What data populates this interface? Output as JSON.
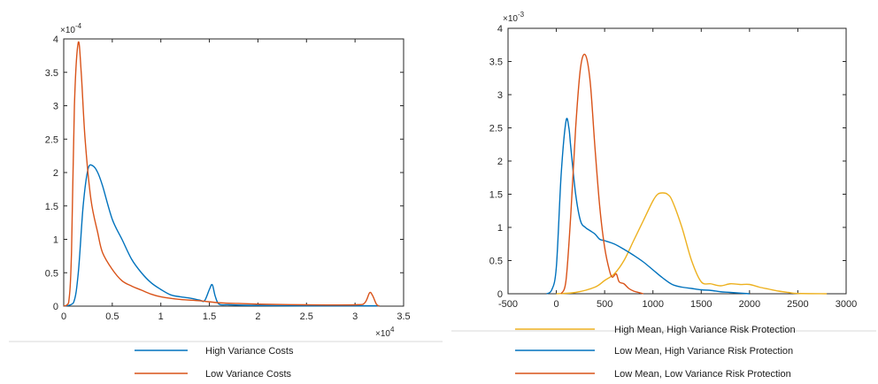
{
  "chart_data": [
    {
      "type": "line",
      "title": "",
      "xlabel": "",
      "ylabel": "",
      "xlim": [
        0,
        35000
      ],
      "ylim": [
        0,
        0.0004
      ],
      "x_ticks": [
        0,
        5000,
        10000,
        15000,
        20000,
        25000,
        30000,
        35000
      ],
      "x_tick_labels": [
        "0",
        "0.5",
        "1",
        "1.5",
        "2",
        "2.5",
        "3",
        "3.5"
      ],
      "y_ticks": [
        0,
        5e-05,
        0.0001,
        0.00015,
        0.0002,
        0.00025,
        0.0003,
        0.00035,
        0.0004
      ],
      "y_tick_labels": [
        "0",
        "0.5",
        "1",
        "1.5",
        "2",
        "2.5",
        "3",
        "3.5",
        "4"
      ],
      "x_multiplier": {
        "base": "×10",
        "exp": "4"
      },
      "y_multiplier": {
        "base": "×10",
        "exp": "-4"
      },
      "grid": false,
      "legend_position": "below",
      "series": [
        {
          "name": "High Variance Costs",
          "color": "#0072BD",
          "x": [
            0,
            1000,
            1500,
            2000,
            2500,
            3000,
            3500,
            4000,
            5000,
            6000,
            7000,
            8000,
            9000,
            10000,
            11000,
            12000,
            13000,
            14000,
            14500,
            15000,
            15300,
            15600,
            16000,
            17000,
            20000,
            25000,
            30000,
            32500
          ],
          "y": [
            0,
            5e-06,
            5e-05,
            0.00015,
            0.000205,
            0.00021,
            0.0002,
            0.00018,
            0.00013,
            0.0001,
            7e-05,
            5e-05,
            3.5e-05,
            2.5e-05,
            1.7e-05,
            1.4e-05,
            1.2e-05,
            9e-06,
            8e-06,
            2.5e-05,
            3.2e-05,
            1.5e-05,
            3e-06,
            2e-06,
            1e-06,
            5e-07,
            5e-07,
            5e-07
          ]
        },
        {
          "name": "Low Variance Costs",
          "color": "#D95319",
          "x": [
            0,
            500,
            800,
            1100,
            1500,
            1800,
            2200,
            2800,
            3500,
            4000,
            5000,
            6000,
            7000,
            8000,
            9000,
            10000,
            12000,
            14000,
            16000,
            18000,
            20000,
            25000,
            30000,
            31000,
            31500,
            31800,
            32200,
            32500
          ],
          "y": [
            0,
            5e-06,
            8e-05,
            0.0003,
            0.000395,
            0.00035,
            0.00025,
            0.00016,
            0.00011,
            8e-05,
            5.5e-05,
            3.8e-05,
            3e-05,
            2.4e-05,
            1.8e-05,
            1.4e-05,
            1e-05,
            8e-06,
            5e-06,
            4e-06,
            3e-06,
            2e-06,
            2e-06,
            5e-06,
            2e-05,
            1.6e-05,
            3e-06,
            0
          ]
        }
      ]
    },
    {
      "type": "line",
      "title": "",
      "xlabel": "",
      "ylabel": "",
      "xlim": [
        -500,
        3000
      ],
      "ylim": [
        0,
        0.004
      ],
      "x_ticks": [
        -500,
        0,
        500,
        1000,
        1500,
        2000,
        2500,
        3000
      ],
      "x_tick_labels": [
        "-500",
        "0",
        "500",
        "1000",
        "1500",
        "2000",
        "2500",
        "3000"
      ],
      "y_ticks": [
        0,
        0.0005,
        0.001,
        0.0015,
        0.002,
        0.0025,
        0.003,
        0.0035,
        0.004
      ],
      "y_tick_labels": [
        "0",
        "0.5",
        "1",
        "1.5",
        "2",
        "2.5",
        "3",
        "3.5",
        "4"
      ],
      "y_multiplier": {
        "base": "×10",
        "exp": "-3"
      },
      "grid": false,
      "legend_position": "below",
      "series": [
        {
          "name": "High Mean, High Variance Risk Protection",
          "color": "#EDB120",
          "x": [
            0,
            200,
            400,
            500,
            600,
            700,
            800,
            900,
            1000,
            1050,
            1100,
            1150,
            1200,
            1300,
            1400,
            1500,
            1600,
            1700,
            1800,
            1900,
            2000,
            2100,
            2200,
            2300,
            2400,
            2500,
            2800
          ],
          "y": [
            0,
            2e-05,
            0.0001,
            0.0002,
            0.0003,
            0.0005,
            0.0008,
            0.0011,
            0.0014,
            0.0015,
            0.00152,
            0.0015,
            0.0014,
            0.001,
            0.0005,
            0.00018,
            0.00015,
            0.00012,
            0.00015,
            0.00014,
            0.00014,
            0.0001,
            7e-05,
            4e-05,
            2e-05,
            5e-06,
            0
          ]
        },
        {
          "name": "Low Mean, High Variance Risk Protection",
          "color": "#0072BD",
          "x": [
            -100,
            -50,
            0,
            50,
            100,
            130,
            150,
            200,
            250,
            300,
            350,
            400,
            450,
            500,
            600,
            700,
            800,
            900,
            1000,
            1100,
            1200,
            1300,
            1400,
            1500,
            1600,
            1700,
            1800,
            2000
          ],
          "y": [
            0,
            5e-05,
            0.0004,
            0.0018,
            0.0026,
            0.0025,
            0.0022,
            0.0015,
            0.0011,
            0.001,
            0.00095,
            0.0009,
            0.00082,
            0.0008,
            0.00075,
            0.00067,
            0.00058,
            0.00048,
            0.00036,
            0.00024,
            0.00014,
            0.0001,
            8e-05,
            6e-05,
            5e-05,
            3e-05,
            2e-05,
            0
          ]
        },
        {
          "name": "Low Mean, Low Variance Risk Protection",
          "color": "#D95319",
          "x": [
            50,
            100,
            150,
            200,
            250,
            300,
            350,
            400,
            450,
            500,
            550,
            580,
            620,
            650,
            700,
            750,
            800,
            850,
            900
          ],
          "y": [
            0,
            0.0002,
            0.0012,
            0.0025,
            0.0034,
            0.0036,
            0.0032,
            0.0022,
            0.0013,
            0.0007,
            0.00035,
            0.00025,
            0.0003,
            0.00018,
            0.00015,
            8e-05,
            4e-05,
            2e-05,
            0
          ]
        }
      ]
    }
  ]
}
